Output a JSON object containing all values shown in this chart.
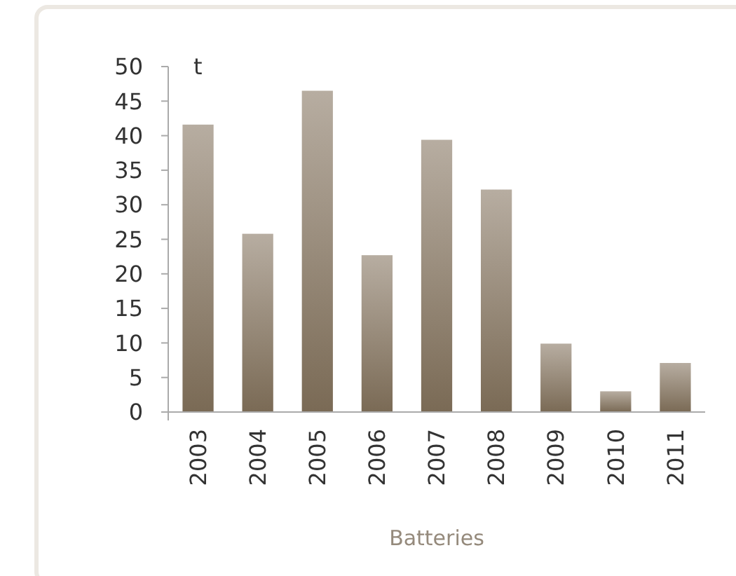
{
  "chart_data": {
    "type": "bar",
    "xlabel": "Batteries",
    "ylabel": "t",
    "categories": [
      "2003",
      "2004",
      "2005",
      "2006",
      "2007",
      "2008",
      "2009",
      "2010",
      "2011"
    ],
    "values": [
      41.6,
      25.8,
      46.5,
      22.7,
      39.4,
      32.2,
      9.9,
      3.0,
      7.1
    ],
    "color": "#7a6a55",
    "ylim": [
      0,
      50
    ],
    "yticks": [
      0,
      5,
      10,
      15,
      20,
      25,
      30,
      35,
      40,
      45,
      50
    ],
    "grid": false
  }
}
